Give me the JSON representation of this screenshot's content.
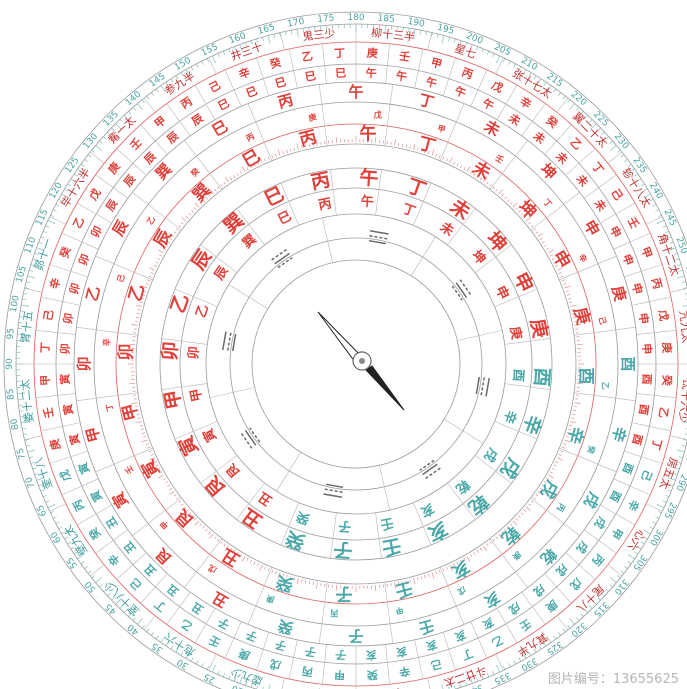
{
  "colors": {
    "red": "#e0403a",
    "teal": "#4aa8a8",
    "line": "#9a9a9a",
    "needle": "#222222"
  },
  "degree_labels": [
    "0",
    "5",
    "10",
    "15",
    "20",
    "25",
    "30",
    "35",
    "40",
    "45",
    "50",
    "55",
    "60",
    "65",
    "70",
    "75",
    "80",
    "85",
    "90",
    "95",
    "100",
    "105",
    "110",
    "115",
    "120",
    "125",
    "130",
    "135",
    "140",
    "145",
    "150",
    "155",
    "160",
    "165",
    "170",
    "175",
    "180",
    "185",
    "190",
    "195",
    "200",
    "205",
    "210",
    "215",
    "220",
    "225",
    "230",
    "235",
    "240",
    "245",
    "250",
    "255",
    "260",
    "265",
    "270",
    "275",
    "280",
    "285",
    "290",
    "295",
    "300",
    "305",
    "310",
    "315",
    "320",
    "325",
    "330",
    "335",
    "340",
    "345",
    "350",
    "355"
  ],
  "mansions": [
    "女十一",
    "虚九少",
    "危十六",
    "室十八少",
    "壁九太",
    "奎十八",
    "娄十二太",
    "胃十五",
    "昴十一",
    "毕十六半",
    "觜一太",
    "参九半",
    "井三十",
    "鬼三少",
    "柳十三半",
    "星七",
    "张十七太",
    "翼二十太",
    "轸十八太",
    "角十二太",
    "亢九太",
    "氐十六少",
    "房五太",
    "心六",
    "尾十八",
    "箕九半",
    "斗廿二太",
    "牛七"
  ],
  "mansions_teal": [
    true,
    true,
    true,
    true,
    true,
    true,
    true,
    true,
    true,
    false,
    false,
    false,
    false,
    false,
    false,
    false,
    false,
    false,
    false,
    false,
    false,
    false,
    false,
    false,
    false,
    false,
    false,
    false
  ],
  "mountains_24": [
    "子",
    "癸",
    "丑",
    "艮",
    "寅",
    "甲",
    "卯",
    "乙",
    "辰",
    "巽",
    "巳",
    "丙",
    "午",
    "丁",
    "未",
    "坤",
    "申",
    "庚",
    "酉",
    "辛",
    "戌",
    "乾",
    "亥",
    "壬"
  ],
  "mountains_teal": [
    true,
    true,
    false,
    false,
    false,
    false,
    false,
    false,
    false,
    false,
    false,
    false,
    false,
    false,
    false,
    false,
    false,
    false,
    true,
    true,
    true,
    true,
    true,
    true
  ],
  "inner_ring_pairs": [
    "甲子",
    "丙子",
    "戊子",
    "庚子",
    "壬子",
    "乙丑",
    "丁丑",
    "己丑",
    "辛丑",
    "癸丑",
    "丙寅",
    "戊寅",
    "庚寅",
    "壬寅",
    "甲寅",
    "丁卯",
    "己卯",
    "辛卯",
    "癸卯",
    "乙卯",
    "戊辰",
    "庚辰",
    "壬辰",
    "甲辰",
    "丙辰",
    "己巳",
    "辛巳",
    "癸巳",
    "乙巳",
    "丁巳",
    "庚午",
    "壬午",
    "甲午",
    "丙午",
    "戊午",
    "辛未",
    "癸未",
    "乙未",
    "丁未",
    "己未",
    "壬申",
    "甲申",
    "丙申",
    "戊申",
    "庚申",
    "癸酉",
    "乙酉",
    "丁酉",
    "己酉",
    "辛酉",
    "甲戌",
    "丙戌",
    "戊戌",
    "庚戌",
    "壬戌",
    "乙亥",
    "丁亥",
    "己亥",
    "辛亥",
    "癸亥"
  ],
  "small_stems": [
    "丙",
    "庚",
    "戊",
    "甲",
    "壬",
    "丁",
    "辛",
    "己",
    "乙",
    "癸"
  ],
  "watermark": "图片编号：13655625"
}
